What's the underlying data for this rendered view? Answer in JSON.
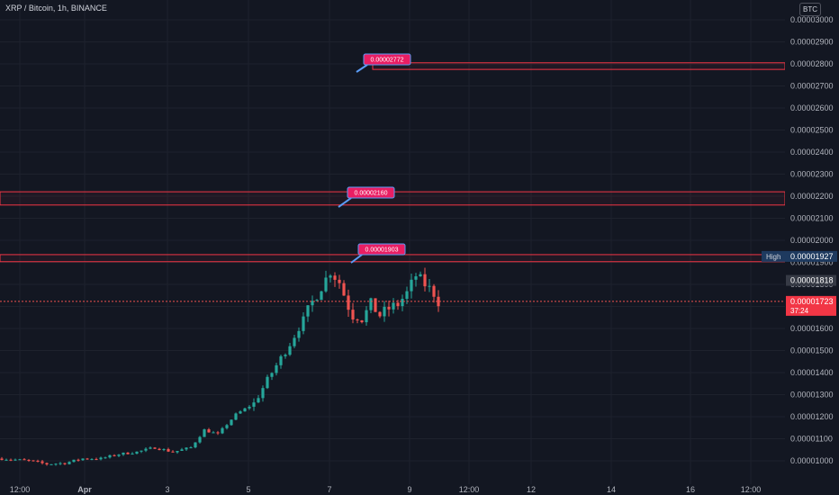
{
  "header": {
    "symbol_title": "XRP / Bitcoin, 1h, BINANCE",
    "currency": "BTC"
  },
  "colors": {
    "background": "#131722",
    "up": "#26a69a",
    "down": "#ef5350",
    "level_line": "#f23645",
    "callout_bg": "#e91e63",
    "callout_border": "#5b9cf6",
    "grid": "#1e222d",
    "high_badge": "#1e3a5f",
    "current_price_badge": "#f23645"
  },
  "chart_data": {
    "type": "candlestick",
    "title": "XRP / Bitcoin, 1h, BINANCE",
    "y_axis_ticks": [
      "0.00003000",
      "0.00002900",
      "0.00002800",
      "0.00002700",
      "0.00002600",
      "0.00002500",
      "0.00002400",
      "0.00002300",
      "0.00002200",
      "0.00002100",
      "0.00002000",
      "0.00001900",
      "0.00001800",
      "0.00001700",
      "0.00001600",
      "0.00001500",
      "0.00001400",
      "0.00001300",
      "0.00001200",
      "0.00001100",
      "0.00001000"
    ],
    "y_range": [
      9.5e-06,
      3.06e-05
    ],
    "x_axis_ticks": [
      "12:00",
      "Apr",
      "3",
      "5",
      "7",
      "9",
      "12:00",
      "12",
      "14",
      "16",
      "12:00"
    ],
    "price_path": [
      [
        0,
        1.01e-05
      ],
      [
        6,
        1e-05
      ],
      [
        10,
        9.85e-06
      ],
      [
        14,
        9.9e-06
      ],
      [
        18,
        1.01e-05
      ],
      [
        22,
        1.01e-05
      ],
      [
        26,
        1.03e-05
      ],
      [
        30,
        1.04e-05
      ],
      [
        34,
        1.06e-05
      ],
      [
        38,
        1.04e-05
      ],
      [
        42,
        1.06e-05
      ],
      [
        45,
        1.14e-05
      ],
      [
        48,
        1.12e-05
      ],
      [
        52,
        1.21e-05
      ],
      [
        56,
        1.26e-05
      ],
      [
        60,
        1.4e-05
      ],
      [
        64,
        1.53e-05
      ],
      [
        67,
        1.64e-05
      ],
      [
        69,
        1.72e-05
      ],
      [
        71,
        1.79e-05
      ],
      [
        73,
        1.86e-05
      ],
      [
        75,
        1.81e-05
      ],
      [
        77,
        1.7e-05
      ],
      [
        78,
        1.66e-05
      ],
      [
        80,
        1.64e-05
      ],
      [
        82,
        1.71e-05
      ],
      [
        84,
        1.66e-05
      ],
      [
        86,
        1.69e-05
      ],
      [
        88,
        1.71e-05
      ],
      [
        90,
        1.76e-05
      ],
      [
        92,
        1.84e-05
      ],
      [
        94,
        1.8e-05
      ],
      [
        96,
        1.76e-05
      ],
      [
        97,
        1.723e-05
      ]
    ],
    "key_levels": [
      {
        "label": "0.00002772",
        "upper": 2.805e-05,
        "lower": 2.775e-05
      },
      {
        "label": "0.00002160",
        "upper": 2.22e-05,
        "lower": 2.16e-05
      },
      {
        "label": "0.00001903",
        "upper": 1.935e-05,
        "lower": 1.903e-05
      }
    ],
    "high": {
      "label": "High",
      "value": "0.00001927"
    },
    "last_close": {
      "value": "0.00001818"
    },
    "current_price": {
      "value": "0.00001723",
      "countdown": "37:24"
    }
  }
}
